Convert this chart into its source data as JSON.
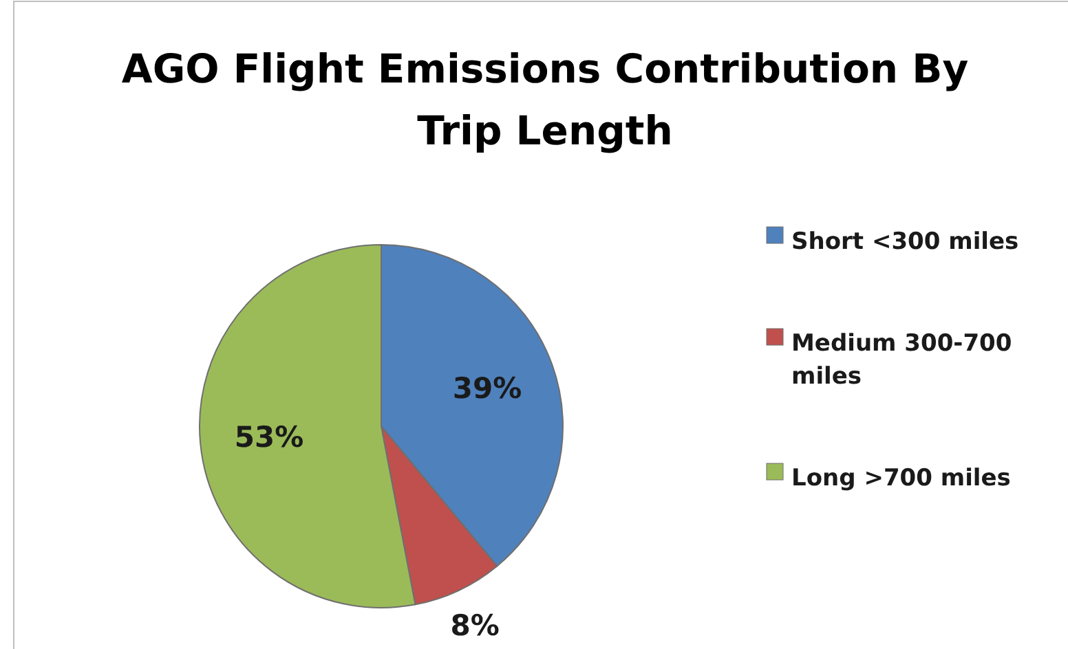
{
  "chart_data": {
    "type": "pie",
    "title": "AGO Flight Emissions Contribution By Trip Length",
    "categories": [
      "Short <300 miles",
      "Medium 300-700 miles",
      "Long >700 miles"
    ],
    "values": [
      39,
      8,
      53
    ],
    "colors": [
      "#4f81bd",
      "#c0504d",
      "#9bbb59"
    ],
    "value_labels": [
      "39%",
      "8%",
      "53%"
    ],
    "legend": "right"
  }
}
